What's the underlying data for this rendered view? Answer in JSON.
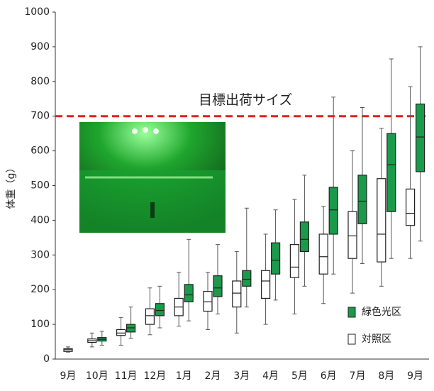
{
  "chart_data": {
    "type": "box",
    "y_label": "体重（g）",
    "categories": [
      "9月",
      "10月",
      "11月",
      "12月",
      "1月",
      "2月",
      "3月",
      "4月",
      "5月",
      "6月",
      "7月",
      "8月",
      "9月"
    ],
    "series": [
      {
        "name": "緑色光区",
        "color": "#1a9a4a",
        "values": [
          null,
          {
            "min": 40,
            "q1": 52,
            "median": 57,
            "q3": 62,
            "max": 80
          },
          {
            "min": 60,
            "q1": 78,
            "median": 90,
            "q3": 100,
            "max": 150
          },
          {
            "min": 90,
            "q1": 125,
            "median": 140,
            "q3": 160,
            "max": 210
          },
          {
            "min": 110,
            "q1": 165,
            "median": 185,
            "q3": 215,
            "max": 345
          },
          {
            "min": 130,
            "q1": 180,
            "median": 205,
            "q3": 240,
            "max": 330
          },
          {
            "min": 150,
            "q1": 210,
            "median": 230,
            "q3": 255,
            "max": 435
          },
          {
            "min": 170,
            "q1": 245,
            "median": 285,
            "q3": 335,
            "max": 430
          },
          {
            "min": 210,
            "q1": 310,
            "median": 345,
            "q3": 395,
            "max": 530
          },
          {
            "min": 245,
            "q1": 360,
            "median": 430,
            "q3": 495,
            "max": 755
          },
          {
            "min": 275,
            "q1": 390,
            "median": 455,
            "q3": 530,
            "max": 725
          },
          {
            "min": 290,
            "q1": 425,
            "median": 560,
            "q3": 650,
            "max": 865
          },
          {
            "min": 340,
            "q1": 540,
            "median": 640,
            "q3": 735,
            "max": 900
          }
        ]
      },
      {
        "name": "対照区",
        "color": "#ffffff",
        "values": [
          {
            "min": 20,
            "q1": 22,
            "median": 27,
            "q3": 30,
            "max": 35
          },
          {
            "min": 35,
            "q1": 48,
            "median": 53,
            "q3": 58,
            "max": 75
          },
          {
            "min": 40,
            "q1": 68,
            "median": 75,
            "q3": 85,
            "max": 120
          },
          {
            "min": 70,
            "q1": 100,
            "median": 125,
            "q3": 145,
            "max": 205
          },
          {
            "min": 95,
            "q1": 125,
            "median": 150,
            "q3": 175,
            "max": 250
          },
          {
            "min": 85,
            "q1": 138,
            "median": 165,
            "q3": 195,
            "max": 250
          },
          {
            "min": 75,
            "q1": 150,
            "median": 190,
            "q3": 225,
            "max": 310
          },
          {
            "min": 100,
            "q1": 175,
            "median": 225,
            "q3": 255,
            "max": 360
          },
          {
            "min": 130,
            "q1": 235,
            "median": 265,
            "q3": 330,
            "max": 460
          },
          {
            "min": 160,
            "q1": 245,
            "median": 295,
            "q3": 360,
            "max": 440
          },
          {
            "min": 190,
            "q1": 290,
            "median": 355,
            "q3": 425,
            "max": 600
          },
          {
            "min": 210,
            "q1": 280,
            "median": 360,
            "q3": 520,
            "max": 665
          },
          {
            "min": 290,
            "q1": 385,
            "median": 420,
            "q3": 490,
            "max": 785
          }
        ]
      }
    ],
    "ylim": [
      0,
      1000
    ],
    "yticks": [
      0,
      100,
      200,
      300,
      400,
      500,
      600,
      700,
      800,
      900,
      1000
    ],
    "reference_line": {
      "value": 700,
      "label": "目標出荷サイズ",
      "color": "#e0201c"
    },
    "legend": "lower right"
  }
}
